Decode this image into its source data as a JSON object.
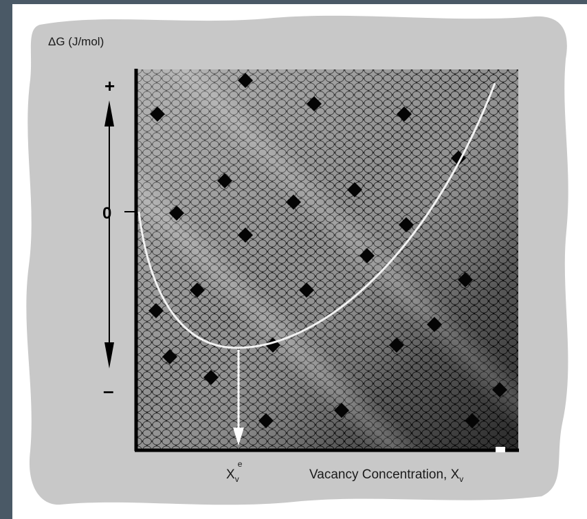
{
  "y_axis": {
    "title": "ΔG (J/mol)",
    "plus": "+",
    "zero": "0",
    "minus": "–"
  },
  "x_axis": {
    "title": "Vacancy Concentration, X",
    "title_sub": "v",
    "equilibrium_label": "X",
    "equilibrium_sub": "v",
    "equilibrium_sup": "e"
  },
  "colors": {
    "background_frame": "#4a5966",
    "blob": "#c8c8c8",
    "curve": "#f2f2f2",
    "axis": "#000000"
  }
}
